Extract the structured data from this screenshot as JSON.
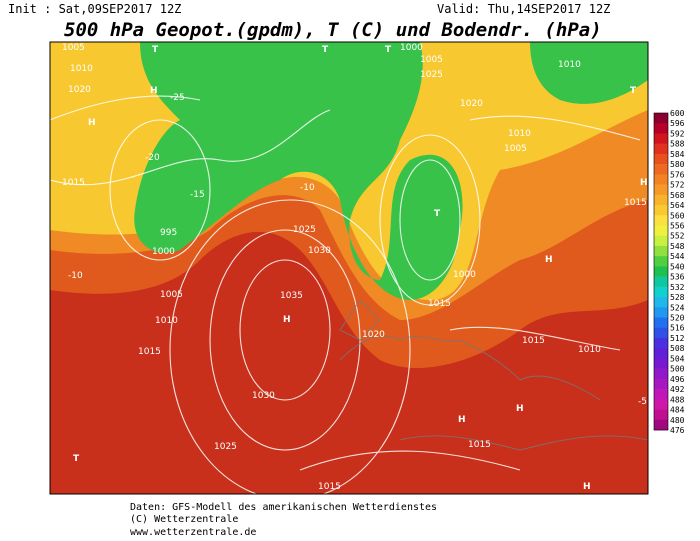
{
  "header": {
    "init": "Init : Sat,09SEP2017 12Z",
    "valid": "Valid: Thu,14SEP2017 12Z",
    "title": "500 hPa Geopot.(gpdm), T (C) und Bodendr. (hPa)"
  },
  "colorbar": {
    "levels": [
      600,
      596,
      592,
      588,
      584,
      580,
      576,
      572,
      568,
      564,
      560,
      556,
      552,
      548,
      544,
      540,
      536,
      532,
      528,
      524,
      520,
      516,
      512,
      508,
      504,
      500,
      496,
      492,
      488,
      484,
      480,
      476
    ],
    "colors": [
      "#8b0030",
      "#b4002a",
      "#d2141e",
      "#e0321e",
      "#e85020",
      "#ee6a22",
      "#f28224",
      "#f59a28",
      "#f8b22c",
      "#fac830",
      "#fce040",
      "#f0f040",
      "#c8f040",
      "#90e040",
      "#50d040",
      "#20c050",
      "#10c8a0",
      "#10d0d0",
      "#20b8e8",
      "#2098f0",
      "#2070f0",
      "#3050e8",
      "#4a30e0",
      "#6020d8",
      "#7818d0",
      "#9018c8",
      "#a818c0",
      "#c018b8",
      "#d018a8",
      "#c01090",
      "#a00880"
    ]
  },
  "map": {
    "labels": [
      "1005",
      "1010",
      "1020",
      "H",
      "H",
      "T",
      "T",
      "T",
      "1000",
      "1005",
      "1025",
      "1020",
      "1010",
      "1005",
      "1015",
      "995",
      "1000",
      "1005",
      "1010",
      "1015",
      "1025",
      "1030",
      "1035",
      "H",
      "1030",
      "1025",
      "T",
      "1015",
      "H",
      "H",
      "H",
      "1015",
      "1010",
      "1020",
      "T",
      "1000",
      "1015",
      "T",
      "1010",
      "H",
      "1015",
      "-20",
      "-25",
      "-15",
      "-10",
      "-10",
      "-5",
      "H",
      "1015"
    ]
  },
  "footer": {
    "lines": [
      "Daten: GFS-Modell des amerikanischen Wetterdienstes",
      "(C) Wetterzentrale",
      "www.wetterzentrale.de"
    ]
  }
}
